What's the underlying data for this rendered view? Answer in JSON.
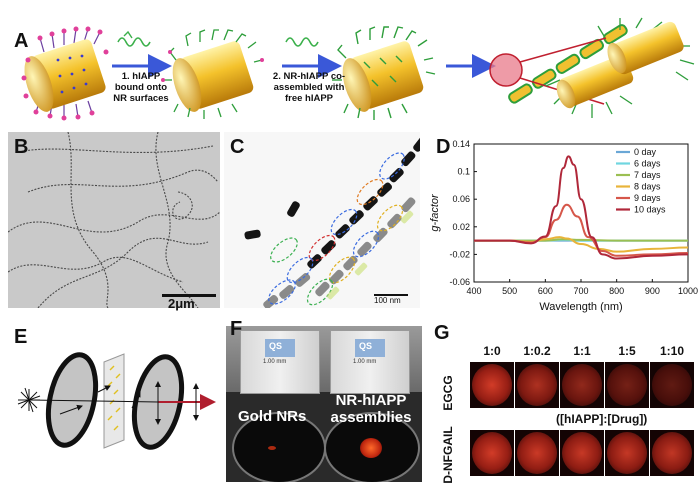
{
  "panels": {
    "A": {
      "label": "A",
      "step1": [
        "1. hIAPP",
        "bound onto",
        "NR surfaces"
      ],
      "step2": [
        "2. NR-hIAPP co-",
        "assembled with",
        "free hIAPP"
      ]
    },
    "B": {
      "label": "B",
      "scalebar": "2μm"
    },
    "C": {
      "label": "C",
      "scalebar": "100 nm"
    },
    "D": {
      "label": "D"
    },
    "E": {
      "label": "E"
    },
    "F": {
      "label": "F",
      "cuvette_text": [
        "QS",
        "1.00 mm"
      ],
      "left_label": "Gold NRs",
      "right_label": [
        "NR-hIAPP",
        "assemblies"
      ]
    },
    "G": {
      "label": "G",
      "ratios": [
        "1:0",
        "1:0.2",
        "1:1",
        "1:5",
        "1:10"
      ],
      "rows": [
        "EGCG",
        "D-NFGAIL"
      ],
      "caption": "([hIAPP]:[Drug])",
      "row_intensity": [
        [
          1.0,
          0.75,
          0.55,
          0.35,
          0.2
        ],
        [
          1.0,
          0.95,
          0.92,
          0.9,
          0.88
        ]
      ]
    }
  },
  "chart_data": {
    "type": "line",
    "title": "",
    "xlabel": "Wavelength (nm)",
    "ylabel": "g-factor",
    "xlim": [
      400,
      1000
    ],
    "ylim": [
      -0.06,
      0.14
    ],
    "xticks": [
      "400",
      "500",
      "600",
      "700",
      "800",
      "900",
      "1000"
    ],
    "yticks": [
      "0.14",
      "0.1",
      "0.06",
      "0.02",
      "-0.02",
      "-0.06"
    ],
    "xtick_values": [
      400,
      500,
      600,
      700,
      800,
      900,
      1000
    ],
    "ytick_values": [
      0.14,
      0.1,
      0.06,
      0.02,
      -0.02,
      -0.06
    ],
    "legend_position": "top-right",
    "series": [
      {
        "name": "0 day",
        "color": "#6aa7d6",
        "x": [
          400,
          500,
          600,
          650,
          700,
          800,
          900,
          1000
        ],
        "y": [
          0.0,
          0.0,
          0.0,
          0.0,
          0.0,
          0.0,
          0.0,
          0.0
        ]
      },
      {
        "name": "6 days",
        "color": "#6fd6e0",
        "x": [
          400,
          500,
          600,
          650,
          700,
          800,
          900,
          1000
        ],
        "y": [
          0.0,
          0.0,
          0.0,
          0.001,
          0.0,
          0.0,
          0.0,
          0.0
        ]
      },
      {
        "name": "7 days",
        "color": "#9bbf52",
        "x": [
          400,
          500,
          600,
          650,
          700,
          800,
          900,
          1000
        ],
        "y": [
          0.0,
          0.0,
          0.0,
          0.002,
          0.001,
          0.0,
          0.0,
          0.0
        ]
      },
      {
        "name": "8 days",
        "color": "#e8b43a",
        "x": [
          400,
          500,
          560,
          600,
          640,
          660,
          700,
          750,
          800,
          900,
          1000
        ],
        "y": [
          0.0,
          0.0,
          -0.002,
          0.002,
          0.005,
          0.003,
          -0.005,
          -0.012,
          -0.016,
          -0.012,
          -0.01
        ]
      },
      {
        "name": "9 days",
        "color": "#d6574a",
        "x": [
          400,
          500,
          560,
          600,
          630,
          660,
          690,
          720,
          760,
          800,
          900,
          1000
        ],
        "y": [
          0.0,
          0.0,
          -0.003,
          0.005,
          0.03,
          0.052,
          0.035,
          0.005,
          -0.015,
          -0.022,
          -0.02,
          -0.018
        ]
      },
      {
        "name": "10 days",
        "color": "#b0283a",
        "x": [
          400,
          500,
          560,
          600,
          630,
          650,
          665,
          680,
          700,
          730,
          760,
          800,
          900,
          1000
        ],
        "y": [
          0.0,
          0.0,
          -0.004,
          0.006,
          0.05,
          0.105,
          0.122,
          0.11,
          0.06,
          0.005,
          -0.02,
          -0.026,
          -0.022,
          -0.02
        ]
      }
    ]
  }
}
